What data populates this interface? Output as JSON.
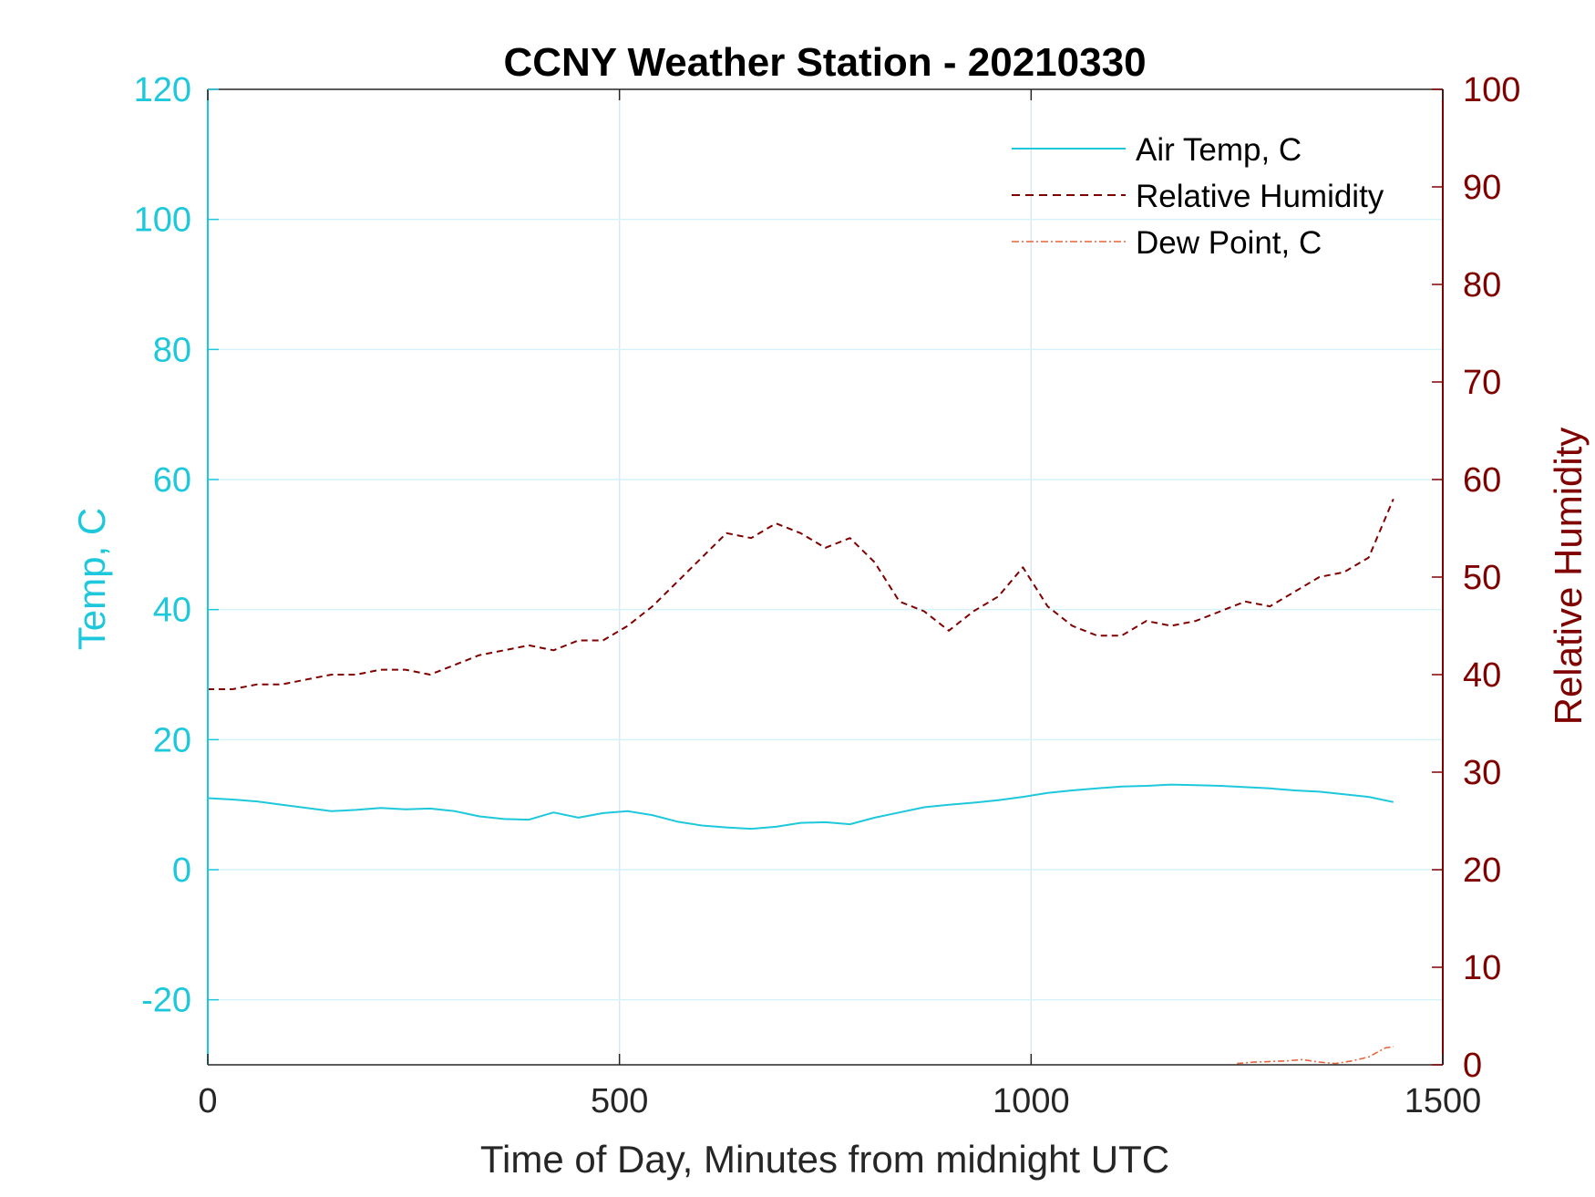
{
  "chart_data": {
    "type": "line",
    "title": "CCNY Weather Station - 20210330",
    "xlabel": "Time of Day, Minutes from midnight UTC",
    "ylabel_left": "Temp, C",
    "ylabel_right": "Relative Humidity",
    "xlim": [
      0,
      1500
    ],
    "ylim_left": [
      -30,
      120
    ],
    "ylim_right": [
      0,
      100
    ],
    "xticks": [
      0,
      500,
      1000,
      1500
    ],
    "yticks_left": [
      -20,
      0,
      20,
      40,
      60,
      80,
      100,
      120
    ],
    "yticks_right": [
      0,
      10,
      20,
      30,
      40,
      50,
      60,
      70,
      80,
      90,
      100
    ],
    "grid": true,
    "legend_position": "top-right",
    "colors": {
      "left_axis": "#1ec8dc",
      "right_axis": "#800000",
      "air_temp": "#1ec8dc",
      "humidity": "#800000",
      "dew_point": "#e8643c",
      "grid": "#dde6ee",
      "grid_h": "#d4f2fa"
    },
    "series": [
      {
        "name": "Air Temp, C",
        "axis": "left",
        "style": "solid",
        "x": [
          0,
          30,
          60,
          90,
          120,
          150,
          180,
          210,
          240,
          270,
          300,
          330,
          360,
          390,
          420,
          450,
          480,
          510,
          540,
          570,
          600,
          630,
          660,
          690,
          720,
          750,
          780,
          810,
          840,
          870,
          900,
          930,
          960,
          990,
          1020,
          1050,
          1080,
          1110,
          1140,
          1170,
          1200,
          1230,
          1260,
          1290,
          1320,
          1350,
          1380,
          1410,
          1440
        ],
        "values": [
          11.0,
          10.8,
          10.5,
          10.0,
          9.5,
          9.0,
          9.2,
          9.5,
          9.3,
          9.4,
          9.0,
          8.2,
          7.8,
          7.7,
          8.8,
          8.0,
          8.7,
          9.0,
          8.4,
          7.4,
          6.8,
          6.5,
          6.3,
          6.6,
          7.2,
          7.3,
          7.0,
          8.0,
          8.8,
          9.6,
          10.0,
          10.3,
          10.7,
          11.2,
          11.8,
          12.2,
          12.5,
          12.8,
          12.9,
          13.1,
          13.0,
          12.9,
          12.7,
          12.5,
          12.2,
          12.0,
          11.6,
          11.2,
          10.4
        ]
      },
      {
        "name": "Relative Humidity",
        "axis": "right",
        "style": "dashed",
        "x": [
          0,
          30,
          60,
          90,
          120,
          150,
          180,
          210,
          240,
          270,
          300,
          330,
          360,
          390,
          420,
          450,
          480,
          510,
          540,
          570,
          600,
          630,
          660,
          690,
          720,
          750,
          780,
          810,
          840,
          870,
          900,
          930,
          960,
          990,
          1020,
          1050,
          1080,
          1110,
          1140,
          1170,
          1200,
          1230,
          1260,
          1290,
          1320,
          1350,
          1380,
          1410,
          1440
        ],
        "values": [
          38.5,
          38.5,
          39.0,
          39.0,
          39.5,
          40.0,
          40.0,
          40.5,
          40.5,
          40.0,
          41.0,
          42.0,
          42.5,
          43.0,
          42.5,
          43.5,
          43.5,
          45.0,
          47.0,
          49.5,
          52.0,
          54.5,
          54.0,
          55.5,
          54.5,
          53.0,
          54.0,
          51.5,
          47.5,
          46.5,
          44.5,
          46.5,
          48.0,
          51.0,
          47.0,
          45.0,
          44.0,
          44.0,
          45.5,
          45.0,
          45.5,
          46.5,
          47.5,
          47.0,
          48.5,
          50.0,
          50.5,
          52.0,
          58.0
        ]
      },
      {
        "name": "Dew Point, C",
        "axis": "left",
        "style": "dashdot",
        "x": [
          1250,
          1270,
          1290,
          1310,
          1330,
          1350,
          1370,
          1390,
          1410,
          1430,
          1440
        ],
        "values": [
          -29.8,
          -29.6,
          -29.5,
          -29.4,
          -29.2,
          -29.6,
          -29.8,
          -29.4,
          -28.8,
          -27.4,
          -27.2
        ]
      }
    ]
  }
}
